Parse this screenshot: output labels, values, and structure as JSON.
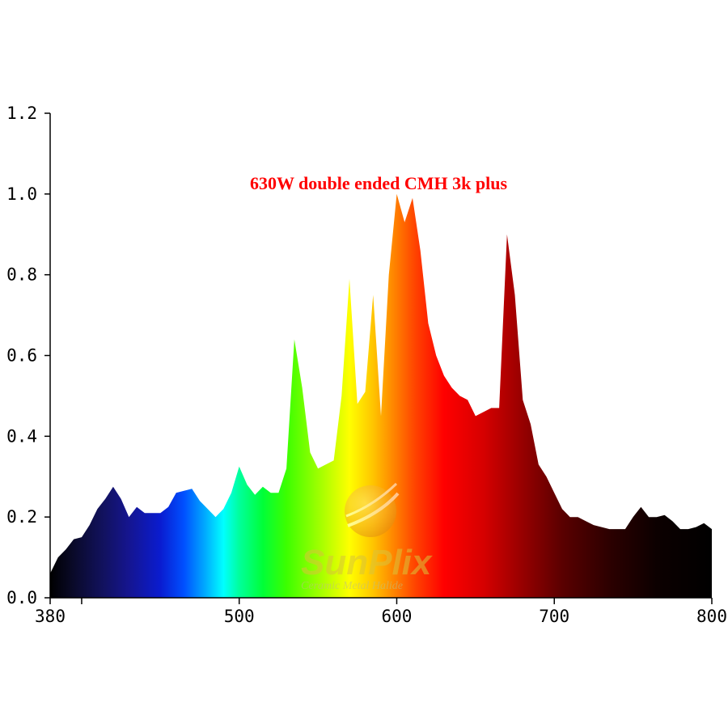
{
  "chart_data": {
    "type": "area",
    "title": "630W double ended CMH 3k plus",
    "title_color": "#ff0000",
    "xlabel": "",
    "ylabel": "",
    "xlim": [
      380,
      800
    ],
    "ylim": [
      0,
      1.2
    ],
    "x_ticks": [
      "380",
      "500",
      "600",
      "700",
      "800"
    ],
    "y_ticks": [
      "0.0",
      "0.2",
      "0.4",
      "0.6",
      "0.8",
      "1.0",
      "1.2"
    ],
    "grid": false,
    "fill": "wavelength-color spectrum gradient",
    "x": [
      380,
      385,
      390,
      395,
      400,
      405,
      410,
      415,
      420,
      425,
      430,
      435,
      440,
      445,
      450,
      455,
      460,
      465,
      470,
      475,
      480,
      485,
      490,
      495,
      500,
      505,
      510,
      515,
      520,
      525,
      530,
      535,
      540,
      545,
      550,
      555,
      560,
      565,
      570,
      575,
      580,
      585,
      590,
      595,
      600,
      605,
      610,
      615,
      620,
      625,
      630,
      635,
      640,
      645,
      650,
      655,
      660,
      665,
      670,
      675,
      680,
      685,
      690,
      695,
      700,
      705,
      710,
      715,
      720,
      725,
      730,
      735,
      740,
      745,
      750,
      755,
      760,
      765,
      770,
      775,
      780,
      785,
      790,
      795,
      800
    ],
    "y": [
      0.06,
      0.1,
      0.12,
      0.145,
      0.15,
      0.18,
      0.22,
      0.245,
      0.275,
      0.245,
      0.2,
      0.225,
      0.21,
      0.21,
      0.21,
      0.225,
      0.26,
      0.265,
      0.27,
      0.24,
      0.22,
      0.2,
      0.22,
      0.26,
      0.325,
      0.28,
      0.255,
      0.275,
      0.26,
      0.26,
      0.32,
      0.64,
      0.52,
      0.36,
      0.32,
      0.33,
      0.34,
      0.5,
      0.79,
      0.48,
      0.51,
      0.75,
      0.45,
      0.8,
      1.0,
      0.93,
      0.99,
      0.86,
      0.68,
      0.6,
      0.55,
      0.52,
      0.5,
      0.49,
      0.45,
      0.46,
      0.47,
      0.47,
      0.9,
      0.75,
      0.49,
      0.43,
      0.33,
      0.3,
      0.26,
      0.22,
      0.2,
      0.2,
      0.19,
      0.18,
      0.175,
      0.17,
      0.17,
      0.17,
      0.2,
      0.225,
      0.2,
      0.2,
      0.205,
      0.19,
      0.17,
      0.17,
      0.175,
      0.185,
      0.17
    ],
    "watermark": {
      "brand": "SunPlix",
      "tagline": "Ceramic Metal Halide"
    }
  }
}
